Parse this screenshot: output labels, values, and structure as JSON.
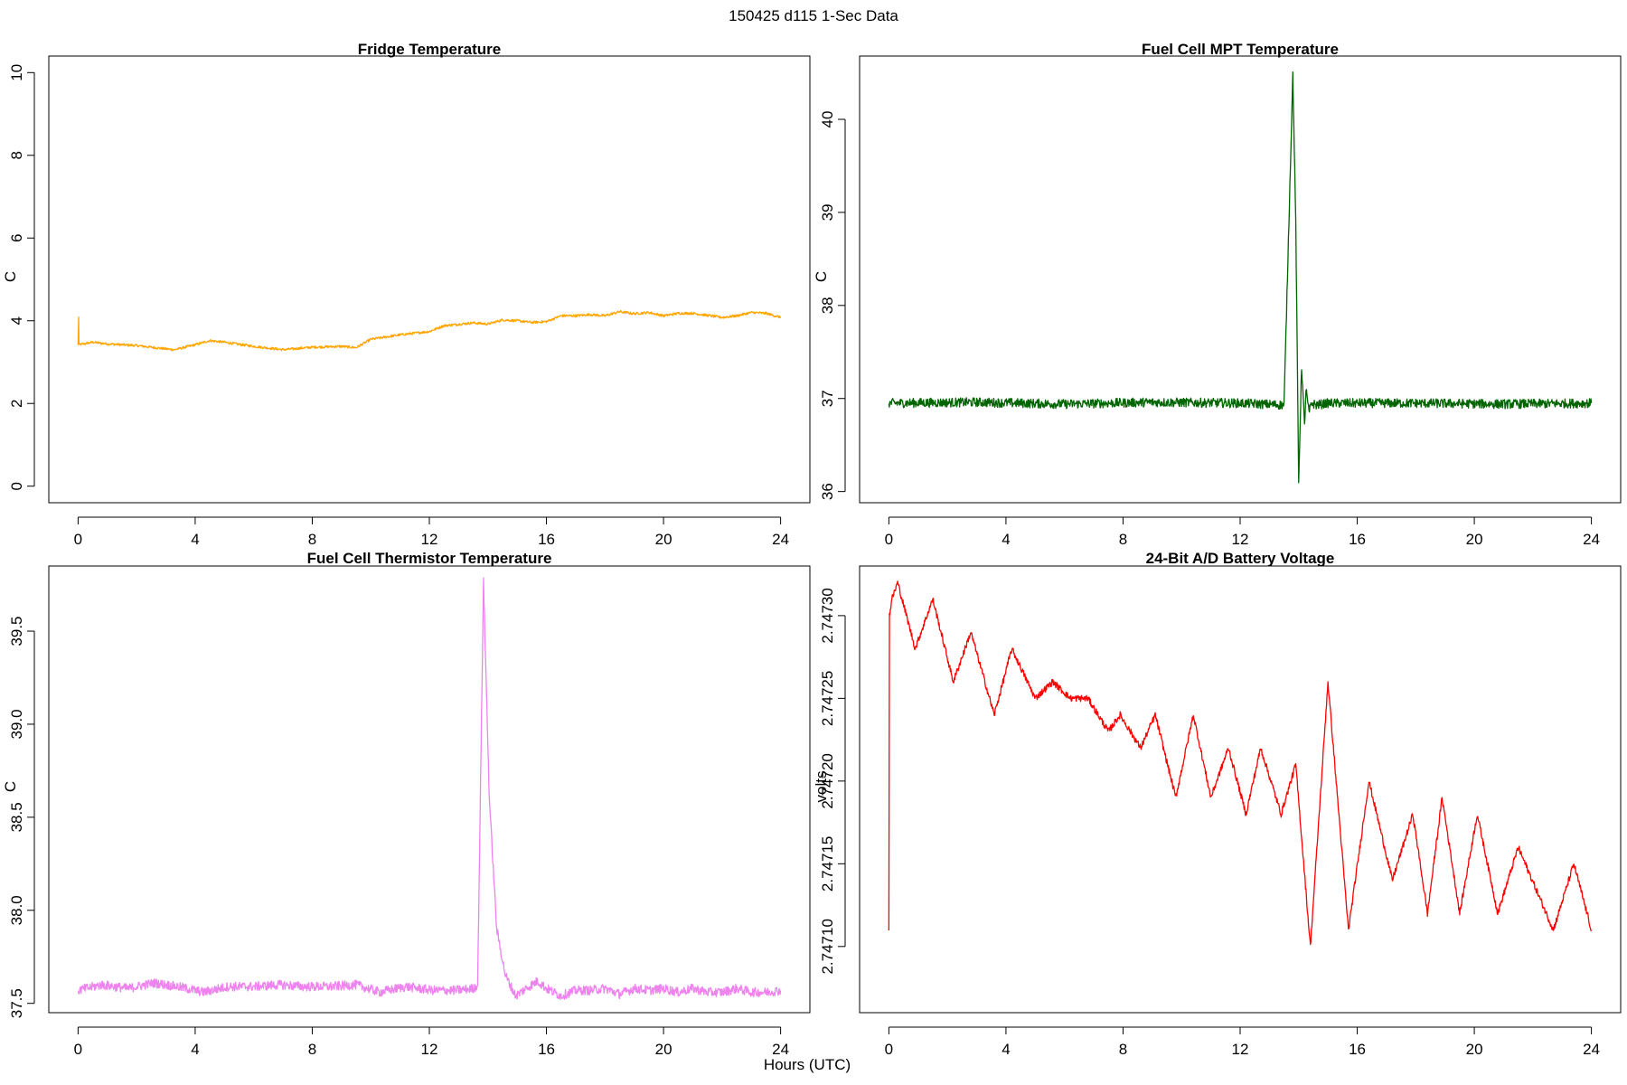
{
  "figure": {
    "suptitle": "150425   d115   1-Sec Data",
    "xlabel": "Hours (UTC)"
  },
  "chart_data": [
    {
      "type": "line",
      "title": "Fridge Temperature",
      "ylabel": "C",
      "color": "#FFA500",
      "xlim": [
        -1,
        25
      ],
      "ylim": [
        -0.4,
        10.4
      ],
      "xticks": [
        "0",
        "4",
        "8",
        "12",
        "16",
        "20",
        "24"
      ],
      "yticks": [
        "0",
        "2",
        "4",
        "6",
        "8",
        "10"
      ],
      "noise": 0.03,
      "series": [
        {
          "x": [
            0,
            0.02,
            0.03,
            0.5,
            1,
            2,
            3,
            3.3,
            4,
            4.5,
            5,
            6,
            7,
            8,
            9,
            9.5,
            10,
            11,
            11.5,
            12,
            12.5,
            13.5,
            14,
            14.5,
            15,
            15.5,
            16,
            16.5,
            17,
            17.5,
            18,
            18.5,
            19,
            19.5,
            20,
            20.5,
            21,
            22,
            22.5,
            23,
            23.5,
            24
          ],
          "values": [
            3.4,
            4.1,
            3.42,
            3.48,
            3.44,
            3.4,
            3.32,
            3.3,
            3.42,
            3.52,
            3.48,
            3.38,
            3.3,
            3.36,
            3.38,
            3.35,
            3.55,
            3.66,
            3.7,
            3.74,
            3.88,
            3.95,
            3.92,
            4.02,
            4.0,
            3.96,
            3.98,
            4.12,
            4.12,
            4.15,
            4.12,
            4.22,
            4.17,
            4.2,
            4.12,
            4.18,
            4.18,
            4.08,
            4.12,
            4.2,
            4.18,
            4.08
          ]
        }
      ]
    },
    {
      "type": "line",
      "title": "Fuel Cell MPT Temperature",
      "ylabel": "C",
      "color": "#006400",
      "xlim": [
        -1,
        25
      ],
      "ylim": [
        35.88,
        40.68
      ],
      "xticks": [
        "0",
        "4",
        "8",
        "12",
        "16",
        "20",
        "24"
      ],
      "yticks": [
        "36",
        "37",
        "38",
        "39",
        "40"
      ],
      "noise": 0.05,
      "series": [
        {
          "x": [
            0,
            3,
            6,
            9,
            12,
            13.5,
            13.8,
            13.9,
            14.0,
            14.1,
            14.2,
            14.25,
            14.35,
            14.45,
            14.6,
            15,
            18,
            21,
            24
          ],
          "values": [
            36.95,
            36.96,
            36.94,
            36.96,
            36.95,
            36.93,
            40.48,
            38.9,
            36.1,
            37.35,
            36.7,
            37.1,
            36.85,
            36.95,
            36.93,
            36.95,
            36.95,
            36.94,
            36.95
          ]
        }
      ]
    },
    {
      "type": "line",
      "title": "Fuel Cell Thermistor Temperature",
      "ylabel": "C",
      "color": "#EE82EE",
      "xlim": [
        -1,
        25
      ],
      "ylim": [
        37.45,
        39.85
      ],
      "xticks": [
        "0",
        "4",
        "8",
        "12",
        "16",
        "20",
        "24"
      ],
      "yticks": [
        "37.5",
        "38.0",
        "38.5",
        "39.0",
        "39.5"
      ],
      "noise": 0.025,
      "series": [
        {
          "x": [
            0,
            0.8,
            1.7,
            2.6,
            3.4,
            4.3,
            5.1,
            6.0,
            6.9,
            7.7,
            8.6,
            9.5,
            10.3,
            11.2,
            12.1,
            12.9,
            13.5,
            13.65,
            13.85,
            14.05,
            14.3,
            14.6,
            14.95,
            15.3,
            15.7,
            16.0,
            16.5,
            17.0,
            17.5,
            18.0,
            18.5,
            19.0,
            19.5,
            20.0,
            20.5,
            21.0,
            21.5,
            22.0,
            22.5,
            23.0,
            23.5,
            24.0
          ],
          "values": [
            37.57,
            37.6,
            37.58,
            37.61,
            37.59,
            37.56,
            37.59,
            37.59,
            37.6,
            37.59,
            37.59,
            37.6,
            37.56,
            37.59,
            37.57,
            37.57,
            37.58,
            37.6,
            39.77,
            38.6,
            37.9,
            37.65,
            37.54,
            37.58,
            37.62,
            37.58,
            37.54,
            37.57,
            37.57,
            37.58,
            37.55,
            37.58,
            37.57,
            37.58,
            37.56,
            37.58,
            37.56,
            37.56,
            37.58,
            37.56,
            37.56,
            37.57
          ]
        }
      ]
    },
    {
      "type": "line",
      "title": "24-Bit A/D Battery Voltage",
      "ylabel": "volts",
      "color": "#FF0000",
      "xlim": [
        -1,
        25
      ],
      "ylim": [
        2.74706,
        2.74733
      ],
      "xticks": [
        "0",
        "4",
        "8",
        "12",
        "16",
        "20",
        "24"
      ],
      "yticks": [
        "2.74710",
        "2.74715",
        "2.74720",
        "2.74725",
        "2.74730"
      ],
      "noise": 2e-06,
      "series": [
        {
          "x": [
            0,
            0.02,
            0.1,
            0.3,
            0.9,
            1.5,
            2.2,
            2.8,
            3.6,
            4.2,
            5.0,
            5.6,
            6.2,
            6.8,
            7.5,
            7.9,
            8.6,
            9.1,
            9.8,
            10.4,
            11.0,
            11.6,
            12.2,
            12.7,
            13.4,
            13.9,
            14.4,
            15.0,
            15.7,
            16.4,
            17.2,
            17.9,
            18.4,
            18.9,
            19.5,
            20.1,
            20.8,
            21.5,
            22.7,
            23.4,
            24.0
          ],
          "values": [
            2.74711,
            2.7473,
            2.74731,
            2.74732,
            2.74728,
            2.74731,
            2.74726,
            2.74729,
            2.74724,
            2.74728,
            2.74725,
            2.74726,
            2.74725,
            2.74725,
            2.74723,
            2.74724,
            2.74722,
            2.74724,
            2.74719,
            2.74724,
            2.74719,
            2.74722,
            2.74718,
            2.74722,
            2.74718,
            2.74721,
            2.7471,
            2.74726,
            2.74711,
            2.7472,
            2.74714,
            2.74718,
            2.74712,
            2.74719,
            2.74712,
            2.74718,
            2.74712,
            2.74716,
            2.74711,
            2.74715,
            2.74711
          ]
        }
      ]
    }
  ]
}
